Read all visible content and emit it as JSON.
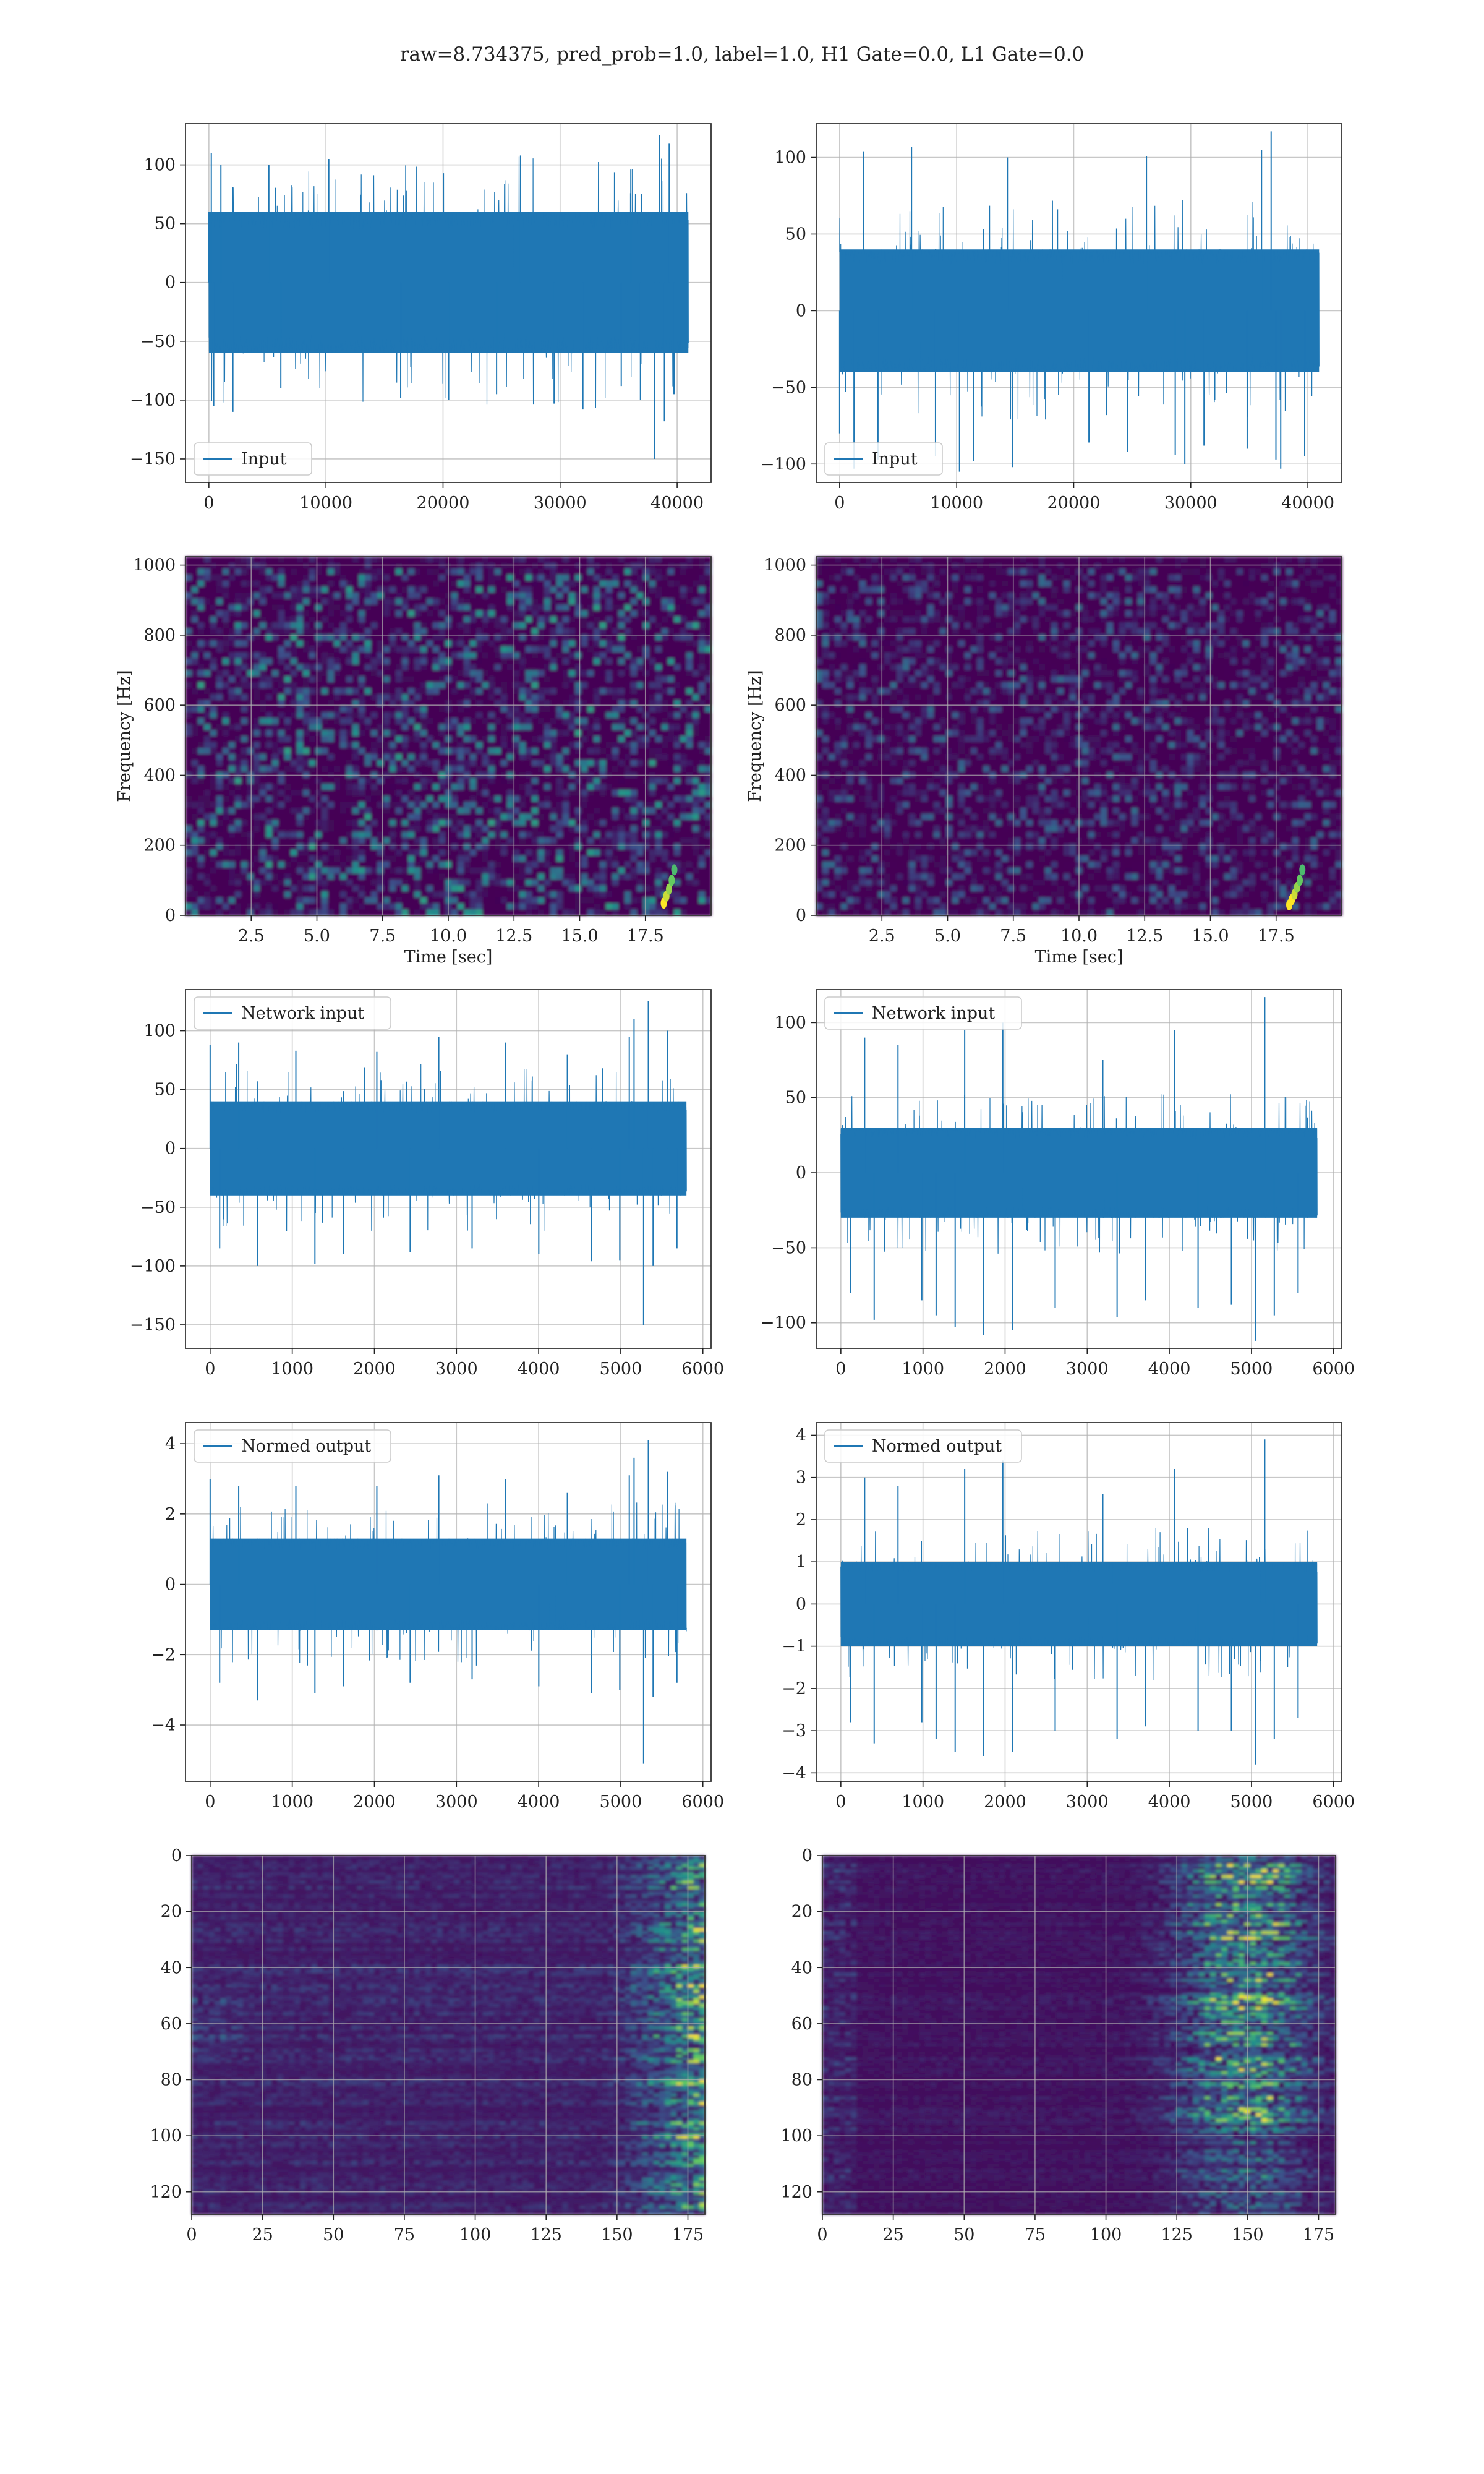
{
  "figure": {
    "title": "raw=8.734375, pred_prob=1.0, label=1.0, H1 Gate=0.0, L1 Gate=0.0"
  },
  "chart_data": [
    {
      "id": "input-h1",
      "type": "line",
      "legend": "Input",
      "legend_loc": "lower-left",
      "xlim": [
        -2000,
        42900
      ],
      "ylim": [
        -170,
        135
      ],
      "xticks": [
        0,
        10000,
        20000,
        30000,
        40000
      ],
      "yticks": [
        -150,
        -100,
        -50,
        0,
        50,
        100
      ],
      "x_range": [
        0,
        40960
      ],
      "band": [
        -60,
        60
      ],
      "spikes": [
        [
          0.0,
          60
        ],
        [
          0.5,
          110
        ],
        [
          1.0,
          -105
        ],
        [
          2.5,
          100
        ],
        [
          5.0,
          -110
        ],
        [
          12.5,
          100
        ],
        [
          15.0,
          -90
        ],
        [
          25.0,
          105
        ],
        [
          40.0,
          -98
        ],
        [
          50.0,
          -100
        ],
        [
          60.0,
          -95
        ],
        [
          65.0,
          108
        ],
        [
          72.0,
          -103
        ],
        [
          78.0,
          -108
        ],
        [
          86.0,
          -88
        ],
        [
          88.0,
          96
        ],
        [
          90.0,
          -100
        ],
        [
          93.0,
          -150
        ],
        [
          94.0,
          125
        ],
        [
          95.0,
          -118
        ],
        [
          96.0,
          118
        ],
        [
          97.0,
          -95
        ]
      ],
      "grid": true,
      "color": "#1f77b4"
    },
    {
      "id": "input-l1",
      "type": "line",
      "legend": "Input",
      "legend_loc": "lower-left",
      "xlim": [
        -2000,
        42900
      ],
      "ylim": [
        -112,
        122
      ],
      "xticks": [
        0,
        10000,
        20000,
        30000,
        40000
      ],
      "yticks": [
        -100,
        -50,
        0,
        50,
        100
      ],
      "x_range": [
        0,
        40960
      ],
      "band": [
        -40,
        40
      ],
      "spikes": [
        [
          0.0,
          -80
        ],
        [
          3.0,
          -103
        ],
        [
          5.0,
          104
        ],
        [
          8.0,
          -97
        ],
        [
          15.0,
          107
        ],
        [
          20.0,
          -95
        ],
        [
          25.0,
          -105
        ],
        [
          28.0,
          -98
        ],
        [
          35.0,
          100
        ],
        [
          36.0,
          -102
        ],
        [
          52.0,
          -86
        ],
        [
          60.0,
          -92
        ],
        [
          64.0,
          101
        ],
        [
          70.0,
          -94
        ],
        [
          72.0,
          -100
        ],
        [
          76.0,
          -88
        ],
        [
          85.0,
          -90
        ],
        [
          88.0,
          105
        ],
        [
          90.0,
          117
        ],
        [
          91.0,
          -97
        ],
        [
          92.0,
          -103
        ],
        [
          97.0,
          -95
        ]
      ],
      "grid": true,
      "color": "#1f77b4"
    },
    {
      "id": "spectrogram-h1",
      "type": "heatmap",
      "xlabel": "Time [sec]",
      "ylabel": "Frequency [Hz]",
      "xlim": [
        0,
        20
      ],
      "ylim": [
        0,
        1024
      ],
      "xticks": [
        2.5,
        5.0,
        7.5,
        10.0,
        12.5,
        15.0,
        17.5
      ],
      "xtick_labels": [
        "2.5",
        "5.0",
        "7.5",
        "10.0",
        "12.5",
        "15.0",
        "17.5"
      ],
      "yticks": [
        0,
        200,
        400,
        600,
        800,
        1000
      ],
      "colormap": "viridis",
      "chirp": [
        [
          18.2,
          35
        ],
        [
          18.3,
          55
        ],
        [
          18.4,
          75
        ],
        [
          18.5,
          100
        ],
        [
          18.6,
          130
        ]
      ],
      "grid": true
    },
    {
      "id": "spectrogram-l1",
      "type": "heatmap",
      "xlabel": "Time [sec]",
      "ylabel": "Frequency [Hz]",
      "xlim": [
        0,
        20
      ],
      "ylim": [
        0,
        1024
      ],
      "xticks": [
        2.5,
        5.0,
        7.5,
        10.0,
        12.5,
        15.0,
        17.5
      ],
      "xtick_labels": [
        "2.5",
        "5.0",
        "7.5",
        "10.0",
        "12.5",
        "15.0",
        "17.5"
      ],
      "yticks": [
        0,
        200,
        400,
        600,
        800,
        1000
      ],
      "colormap": "viridis",
      "chirp": [
        [
          18.0,
          30
        ],
        [
          18.1,
          45
        ],
        [
          18.2,
          60
        ],
        [
          18.3,
          80
        ],
        [
          18.4,
          100
        ],
        [
          18.5,
          130
        ]
      ],
      "grid": true
    },
    {
      "id": "network-input-h1",
      "type": "line",
      "legend": "Network input",
      "legend_loc": "upper-left",
      "xlim": [
        -300,
        6100
      ],
      "ylim": [
        -170,
        135
      ],
      "xticks": [
        0,
        1000,
        2000,
        3000,
        4000,
        5000,
        6000
      ],
      "yticks": [
        -150,
        -100,
        -50,
        0,
        50,
        100
      ],
      "x_range": [
        0,
        5800
      ],
      "band": [
        -40,
        40
      ],
      "spikes": [
        [
          0.0,
          88
        ],
        [
          2.0,
          -85
        ],
        [
          6.0,
          90
        ],
        [
          10.0,
          -100
        ],
        [
          18.0,
          83
        ],
        [
          22.0,
          -98
        ],
        [
          28.0,
          -90
        ],
        [
          35.0,
          82
        ],
        [
          42.0,
          -88
        ],
        [
          48.0,
          95
        ],
        [
          55.0,
          -85
        ],
        [
          62.0,
          90
        ],
        [
          69.0,
          -90
        ],
        [
          75.0,
          80
        ],
        [
          80.0,
          -96
        ],
        [
          86.0,
          -95
        ],
        [
          88.0,
          95
        ],
        [
          89.0,
          110
        ],
        [
          91.0,
          -150
        ],
        [
          92.0,
          125
        ],
        [
          93.0,
          -100
        ],
        [
          96.0,
          100
        ],
        [
          98.0,
          -85
        ]
      ],
      "grid": true,
      "color": "#1f77b4"
    },
    {
      "id": "network-input-l1",
      "type": "line",
      "legend": "Network input",
      "legend_loc": "upper-left",
      "xlim": [
        -300,
        6100
      ],
      "ylim": [
        -117,
        122
      ],
      "xticks": [
        0,
        1000,
        2000,
        3000,
        4000,
        5000,
        6000
      ],
      "yticks": [
        -100,
        -50,
        0,
        50,
        100
      ],
      "x_range": [
        0,
        5800
      ],
      "band": [
        -30,
        30
      ],
      "spikes": [
        [
          2.0,
          -80
        ],
        [
          5.0,
          90
        ],
        [
          7.0,
          -98
        ],
        [
          12.0,
          85
        ],
        [
          17.0,
          -85
        ],
        [
          20.0,
          -95
        ],
        [
          24.0,
          -103
        ],
        [
          26.0,
          95
        ],
        [
          30.0,
          -108
        ],
        [
          34.0,
          100
        ],
        [
          36.0,
          -105
        ],
        [
          45.0,
          -90
        ],
        [
          55.0,
          75
        ],
        [
          58.0,
          -96
        ],
        [
          64.0,
          -85
        ],
        [
          70.0,
          95
        ],
        [
          75.0,
          -90
        ],
        [
          82.0,
          -88
        ],
        [
          87.0,
          -112
        ],
        [
          89.0,
          117
        ],
        [
          91.0,
          -95
        ],
        [
          96.0,
          -80
        ]
      ],
      "grid": true,
      "color": "#1f77b4"
    },
    {
      "id": "normed-output-h1",
      "type": "line",
      "legend": "Normed output",
      "legend_loc": "upper-left",
      "xlim": [
        -300,
        6100
      ],
      "ylim": [
        -5.6,
        4.6
      ],
      "xticks": [
        0,
        1000,
        2000,
        3000,
        4000,
        5000,
        6000
      ],
      "yticks": [
        -4,
        -2,
        0,
        2,
        4
      ],
      "x_range": [
        0,
        5800
      ],
      "band": [
        -1.3,
        1.3
      ],
      "spikes": [
        [
          0.0,
          3.0
        ],
        [
          2.0,
          -2.8
        ],
        [
          6.0,
          2.8
        ],
        [
          10.0,
          -3.3
        ],
        [
          18.0,
          2.8
        ],
        [
          22.0,
          -3.1
        ],
        [
          28.0,
          -2.9
        ],
        [
          35.0,
          2.8
        ],
        [
          42.0,
          -2.8
        ],
        [
          48.0,
          3.1
        ],
        [
          55.0,
          -2.7
        ],
        [
          62.0,
          3.0
        ],
        [
          69.0,
          -2.9
        ],
        [
          75.0,
          2.6
        ],
        [
          80.0,
          -3.1
        ],
        [
          86.0,
          -3.0
        ],
        [
          88.0,
          3.1
        ],
        [
          89.0,
          3.6
        ],
        [
          91.0,
          -5.1
        ],
        [
          92.0,
          4.1
        ],
        [
          93.0,
          -3.2
        ],
        [
          96.0,
          3.2
        ],
        [
          98.0,
          -2.8
        ]
      ],
      "grid": true,
      "color": "#1f77b4"
    },
    {
      "id": "normed-output-l1",
      "type": "line",
      "legend": "Normed output",
      "legend_loc": "upper-left",
      "xlim": [
        -300,
        6100
      ],
      "ylim": [
        -4.2,
        4.3
      ],
      "xticks": [
        0,
        1000,
        2000,
        3000,
        4000,
        5000,
        6000
      ],
      "yticks": [
        -4,
        -3,
        -2,
        -1,
        0,
        1,
        2,
        3,
        4
      ],
      "x_range": [
        0,
        5800
      ],
      "band": [
        -1.0,
        1.0
      ],
      "spikes": [
        [
          2.0,
          -2.8
        ],
        [
          5.0,
          3.0
        ],
        [
          7.0,
          -3.3
        ],
        [
          12.0,
          2.8
        ],
        [
          17.0,
          -2.8
        ],
        [
          20.0,
          -3.2
        ],
        [
          24.0,
          -3.5
        ],
        [
          26.0,
          3.2
        ],
        [
          30.0,
          -3.6
        ],
        [
          34.0,
          3.4
        ],
        [
          36.0,
          -3.5
        ],
        [
          45.0,
          -3.0
        ],
        [
          55.0,
          2.6
        ],
        [
          58.0,
          -3.2
        ],
        [
          64.0,
          -2.9
        ],
        [
          70.0,
          3.2
        ],
        [
          75.0,
          -3.0
        ],
        [
          82.0,
          -3.0
        ],
        [
          87.0,
          -3.8
        ],
        [
          89.0,
          3.9
        ],
        [
          91.0,
          -3.2
        ],
        [
          96.0,
          -2.7
        ]
      ],
      "grid": true,
      "color": "#1f77b4"
    },
    {
      "id": "network-output-h1",
      "type": "heatmap",
      "xlim": [
        0,
        181
      ],
      "ylim": [
        128,
        0
      ],
      "xticks": [
        0,
        25,
        50,
        75,
        100,
        125,
        150,
        175
      ],
      "yticks": [
        0,
        20,
        40,
        60,
        80,
        100,
        120
      ],
      "colormap": "viridis",
      "grid": true
    },
    {
      "id": "network-output-l1",
      "type": "heatmap",
      "xlim": [
        0,
        181
      ],
      "ylim": [
        128,
        0
      ],
      "xticks": [
        0,
        25,
        50,
        75,
        100,
        125,
        150,
        175
      ],
      "yticks": [
        0,
        20,
        40,
        60,
        80,
        100,
        120
      ],
      "colormap": "viridis",
      "grid": true
    }
  ]
}
